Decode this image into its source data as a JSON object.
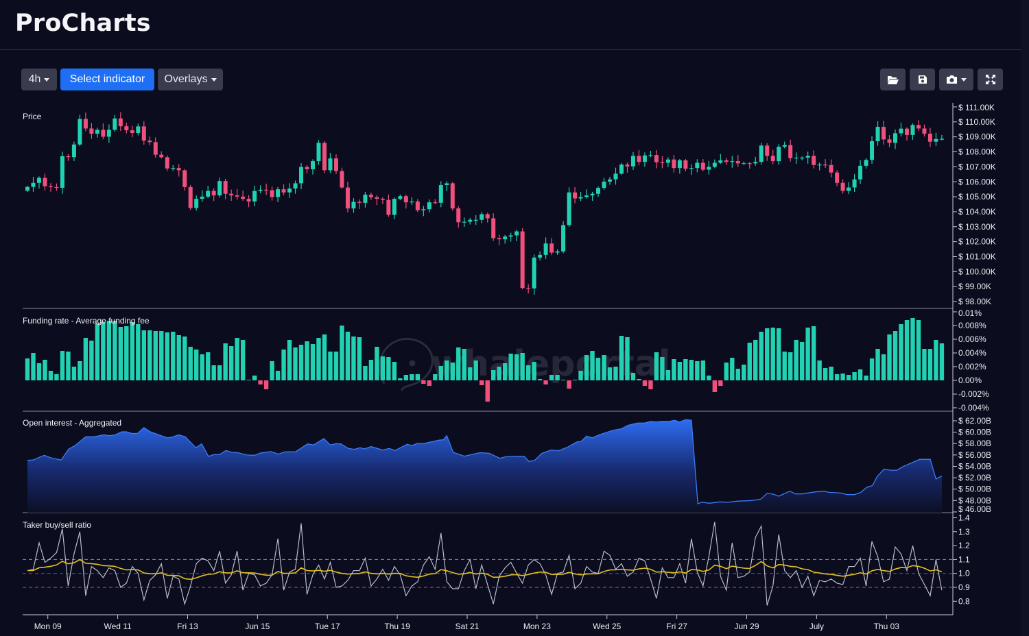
{
  "app": {
    "title": "ProCharts"
  },
  "toolbar": {
    "interval": "4h",
    "select_indicator": "Select indicator",
    "overlays": "Overlays",
    "icons": [
      "folder-open-icon",
      "save-icon",
      "camera-icon",
      "fullscreen-icon"
    ]
  },
  "watermark": "whaleportal",
  "colors": {
    "background": "#0b0c1e",
    "up": "#22d1b2",
    "down": "#f0507c",
    "accent": "#1e6ff5",
    "open_interest": "#2f6ff0",
    "taker_ratio": "#b9bcc8",
    "taker_average": "#e6c21e",
    "level_high": "#3fb6c8",
    "level_mid": "#3b5bd6",
    "level_low": "#b8508a"
  },
  "chart_data": [
    {
      "type": "candlestick",
      "title": "Price",
      "interval": "4h",
      "ylim": [
        98,
        111
      ],
      "y_ticks": [
        {
          "value": 111,
          "label": "$ 111.00K"
        },
        {
          "value": 110,
          "label": "$ 110.00K"
        },
        {
          "value": 109,
          "label": "$ 109.00K"
        },
        {
          "value": 108,
          "label": "$ 108.00K"
        },
        {
          "value": 107,
          "label": "$ 107.00K"
        },
        {
          "value": 106,
          "label": "$ 106.00K"
        },
        {
          "value": 105,
          "label": "$ 105.00K"
        },
        {
          "value": 104,
          "label": "$ 104.00K"
        },
        {
          "value": 103,
          "label": "$ 103.00K"
        },
        {
          "value": 102,
          "label": "$ 102.00K"
        },
        {
          "value": 101,
          "label": "$ 101.00K"
        },
        {
          "value": 100,
          "label": "$ 100.00K"
        },
        {
          "value": 99,
          "label": "$ 99.00K"
        },
        {
          "value": 98,
          "label": "$ 98.00K"
        }
      ],
      "first_open": 105.4,
      "close": [
        105.66,
        105.93,
        106.26,
        105.7,
        105.65,
        105.6,
        107.71,
        107.65,
        108.49,
        110.2,
        109.56,
        109.21,
        109.47,
        109.01,
        109.47,
        110.23,
        109.71,
        109.44,
        109.26,
        109.7,
        108.75,
        108.65,
        107.81,
        107.64,
        106.89,
        106.92,
        106.77,
        105.65,
        104.25,
        104.86,
        105.01,
        105.39,
        105.09,
        106.05,
        105.2,
        105.09,
        105.01,
        104.86,
        104.68,
        105.39,
        105.47,
        105.44,
        104.98,
        105.5,
        105.29,
        105.55,
        105.9,
        106.99,
        106.84,
        107.38,
        108.6,
        106.77,
        107.56,
        106.72,
        105.62,
        104.22,
        104.66,
        104.6,
        105.14,
        104.97,
        104.86,
        104.79,
        103.79,
        104.86,
        105.04,
        104.63,
        104.68,
        104.1,
        104.17,
        104.63,
        104.6,
        105.78,
        105.9,
        104.22,
        103.3,
        103.33,
        103.46,
        103.46,
        103.84,
        103.56,
        102.24,
        102.16,
        102.34,
        102.42,
        102.69,
        98.91,
        98.88,
        100.94,
        101.12,
        101.88,
        101.27,
        101.35,
        103.11,
        105.29,
        104.89,
        104.98,
        105.09,
        105.2,
        105.59,
        106.01,
        106.16,
        106.54,
        107.15,
        107.03,
        107.73,
        107.33,
        107.76,
        107.79,
        107.3,
        107.27,
        107.49,
        106.92,
        107.43,
        106.87,
        106.92,
        107.27,
        106.81,
        107.0,
        107.27,
        107.43,
        107.33,
        107.38,
        107.23,
        107.24,
        107.23,
        107.33,
        108.42,
        107.73,
        107.38,
        108.34,
        108.45,
        107.58,
        107.61,
        107.61,
        107.73,
        107.12,
        107.15,
        107.12,
        106.62,
        105.93,
        105.39,
        105.62,
        106.16,
        107.07,
        107.46,
        108.71,
        109.67,
        108.83,
        108.6,
        109.24,
        109.55,
        109.13,
        109.79,
        109.56,
        109.21,
        108.68,
        108.86,
        108.87
      ]
    },
    {
      "type": "bar",
      "title": "Funding rate - Average funding fee",
      "unit": "%",
      "ylim": [
        -0.004,
        0.01
      ],
      "y_ticks": [
        {
          "value": 0.01,
          "label": "0.01%"
        },
        {
          "value": 0.008,
          "label": "0.008%"
        },
        {
          "value": 0.006,
          "label": "0.006%"
        },
        {
          "value": 0.004,
          "label": "0.004%"
        },
        {
          "value": 0.002,
          "label": "0.002%"
        },
        {
          "value": 0,
          "label": "0.00%"
        },
        {
          "value": -0.002,
          "label": "-0.002%"
        },
        {
          "value": -0.004,
          "label": "-0.004%"
        }
      ],
      "values": [
        0.0032,
        0.004,
        0.0025,
        0.003,
        0.0014,
        0.0009,
        0.0043,
        0.0042,
        0.002,
        0.0028,
        0.0062,
        0.0058,
        0.0083,
        0.0085,
        0.0087,
        0.0087,
        0.0078,
        0.0079,
        0.0085,
        0.0082,
        0.0073,
        0.0073,
        0.0072,
        0.0072,
        0.007,
        0.0071,
        0.0066,
        0.0064,
        0.0049,
        0.0045,
        0.0038,
        0.0041,
        0.0022,
        0.0022,
        0.0054,
        0.005,
        0.0062,
        0.0059,
        0.0001,
        0.0007,
        -0.0006,
        -0.0013,
        0.0028,
        0.0014,
        0.0045,
        0.0059,
        0.0048,
        0.0052,
        0.0057,
        0.0053,
        0.0062,
        0.0067,
        0.0042,
        0.0042,
        0.008,
        0.0071,
        0.0064,
        0.0063,
        0.0021,
        0.003,
        0.0049,
        0.0035,
        0.0034,
        0.0027,
        0.0003,
        0.0008,
        0.0009,
        0.0009,
        -0.0005,
        -0.0008,
        0.0009,
        0.0021,
        0.0029,
        0.0026,
        0.0048,
        0.0046,
        0.0019,
        0.0029,
        -0.0007,
        -0.0031,
        0.0015,
        0.002,
        0.0025,
        0.0039,
        0.0038,
        0.004,
        0.0022,
        0.0027,
        0.0002,
        -0.0006,
        0.0008,
        0.0008,
        0.0001,
        -0.0012,
        0.0001,
        0.0014,
        0.0037,
        0.0043,
        0.0033,
        0.0037,
        0.0019,
        0.002,
        0.0065,
        0.0063,
        0.0011,
        0.0002,
        -0.0008,
        -0.0013,
        0.0041,
        0.0034,
        0.0015,
        0.0031,
        0.0027,
        0.0031,
        0.003,
        0.0028,
        0.0029,
        0.0007,
        -0.0017,
        -0.0008,
        0.0026,
        0.0033,
        0.0017,
        0.0023,
        0.0055,
        0.0059,
        0.0071,
        0.0076,
        0.0077,
        0.0076,
        0.0042,
        0.0041,
        0.0059,
        0.0056,
        0.0077,
        0.0079,
        0.0029,
        0.0018,
        0.002,
        0.0009,
        0.001,
        0.0008,
        0.0012,
        0.0016,
        0.0007,
        0.0032,
        0.0046,
        0.0038,
        0.0067,
        0.0072,
        0.0082,
        0.0088,
        0.0091,
        0.0088,
        0.0046,
        0.0046,
        0.0059,
        0.0054
      ]
    },
    {
      "type": "area",
      "title": "Open interest - Aggregated",
      "unit": "$B",
      "ylim": [
        46,
        62
      ],
      "y_ticks": [
        {
          "value": 62,
          "label": "$ 62.00B"
        },
        {
          "value": 60,
          "label": "$ 60.00B"
        },
        {
          "value": 58,
          "label": "$ 58.00B"
        },
        {
          "value": 56,
          "label": "$ 56.00B"
        },
        {
          "value": 54,
          "label": "$ 54.00B"
        },
        {
          "value": 52,
          "label": "$ 52.00B"
        },
        {
          "value": 50,
          "label": "$ 50.00B"
        },
        {
          "value": 48,
          "label": "$ 48.00B"
        },
        {
          "value": 46,
          "label": "$ 46.00B"
        }
      ],
      "points": [
        [
          0,
          55.06
        ],
        [
          0.9,
          55.1
        ],
        [
          2.9,
          55.95
        ],
        [
          4,
          55.5
        ],
        [
          5.8,
          55.1
        ],
        [
          7.1,
          57.07
        ],
        [
          8.2,
          57.66
        ],
        [
          10,
          59.2
        ],
        [
          11.5,
          59.2
        ],
        [
          13.1,
          59.55
        ],
        [
          14.1,
          59.4
        ],
        [
          15.1,
          59.55
        ],
        [
          16.2,
          60.07
        ],
        [
          17,
          60.07
        ],
        [
          18.1,
          59.75
        ],
        [
          18.9,
          59.8
        ],
        [
          20,
          60.8
        ],
        [
          21.1,
          60.07
        ],
        [
          24,
          59.0
        ],
        [
          24.7,
          59.1
        ],
        [
          26,
          59.55
        ],
        [
          27.1,
          59.2
        ],
        [
          28.9,
          57.27
        ],
        [
          29.9,
          57.95
        ],
        [
          31.1,
          55.75
        ],
        [
          32,
          56.07
        ],
        [
          33,
          56.07
        ],
        [
          34.1,
          56.79
        ],
        [
          35.1,
          56.47
        ],
        [
          36.1,
          56.4
        ],
        [
          37.7,
          55.99
        ],
        [
          39,
          55.95
        ],
        [
          40,
          56.35
        ],
        [
          41.8,
          56.6
        ],
        [
          43.1,
          56.15
        ],
        [
          44.2,
          56.55
        ],
        [
          46,
          56.55
        ],
        [
          48.1,
          57.95
        ],
        [
          49.1,
          57.75
        ],
        [
          50.9,
          58.88
        ],
        [
          52,
          57.75
        ],
        [
          53,
          57.99
        ],
        [
          53.8,
          57.95
        ],
        [
          55.1,
          57.15
        ],
        [
          56.1,
          56.99
        ],
        [
          57.1,
          57.27
        ],
        [
          57.9,
          57.07
        ],
        [
          59,
          57.47
        ],
        [
          61,
          56.87
        ],
        [
          62.1,
          57.15
        ],
        [
          63.1,
          56.79
        ],
        [
          65.2,
          57.87
        ],
        [
          66,
          57.67
        ],
        [
          67,
          58.03
        ],
        [
          68,
          57.99
        ],
        [
          70.6,
          58.6
        ],
        [
          71.4,
          58.67
        ],
        [
          72,
          59.39
        ],
        [
          73.1,
          56.47
        ],
        [
          75,
          55.79
        ],
        [
          77.7,
          56.4
        ],
        [
          79.3,
          56.3
        ],
        [
          81.1,
          55.43
        ],
        [
          82.2,
          55.7
        ],
        [
          84.5,
          55.79
        ],
        [
          85.3,
          55.75
        ],
        [
          86.1,
          54.87
        ],
        [
          87.1,
          55.06
        ],
        [
          88.3,
          56.27
        ],
        [
          89.9,
          56.87
        ],
        [
          91.2,
          56.75
        ],
        [
          92.8,
          57.4
        ],
        [
          94.3,
          58.27
        ],
        [
          95.1,
          58.4
        ],
        [
          96,
          59.3
        ],
        [
          97,
          59.0
        ],
        [
          98.2,
          59.55
        ],
        [
          100.6,
          60.35
        ],
        [
          102,
          60.6
        ],
        [
          103.1,
          61.2
        ],
        [
          104.7,
          61.6
        ],
        [
          106,
          61.6
        ],
        [
          107,
          61.9
        ],
        [
          108,
          61.8
        ],
        [
          108.8,
          61.9
        ],
        [
          110.3,
          61.9
        ],
        [
          111.1,
          62.1
        ],
        [
          112,
          61.8
        ],
        [
          113,
          62.2
        ],
        [
          114,
          62.1
        ],
        [
          115.1,
          47.44
        ],
        [
          115.8,
          47.7
        ],
        [
          117.1,
          47.52
        ],
        [
          118.9,
          47.76
        ],
        [
          120.2,
          47.68
        ],
        [
          121.8,
          47.88
        ],
        [
          124.4,
          48.0
        ],
        [
          125.9,
          48.24
        ],
        [
          127,
          49.24
        ],
        [
          128,
          49.12
        ],
        [
          129,
          48.76
        ],
        [
          130.9,
          49.64
        ],
        [
          131.9,
          49.16
        ],
        [
          132.9,
          49.16
        ],
        [
          135.3,
          49.52
        ],
        [
          136.8,
          49.64
        ],
        [
          137.6,
          49.44
        ],
        [
          139.7,
          49.32
        ],
        [
          140.7,
          49.04
        ],
        [
          142,
          49.04
        ],
        [
          143.1,
          49.44
        ],
        [
          144.1,
          50.32
        ],
        [
          145.1,
          50.64
        ],
        [
          145.9,
          52.24
        ],
        [
          147.1,
          53.52
        ],
        [
          148.2,
          53.32
        ],
        [
          149.3,
          53.32
        ],
        [
          150.1,
          53.84
        ],
        [
          151.4,
          54.44
        ],
        [
          153.2,
          55.24
        ],
        [
          155,
          55.24
        ],
        [
          156,
          51.77
        ],
        [
          157,
          52.33
        ]
      ]
    },
    {
      "type": "line",
      "title": "Taker buy/sell ratio",
      "ylim": [
        0.75,
        1.4
      ],
      "y_ticks": [
        {
          "value": 1.4,
          "label": "1.4"
        },
        {
          "value": 1.3,
          "label": "1.3"
        },
        {
          "value": 1.2,
          "label": "1.2"
        },
        {
          "value": 1.1,
          "label": "1.1"
        },
        {
          "value": 1.0,
          "label": "1.0"
        },
        {
          "value": 0.9,
          "label": "0.9"
        },
        {
          "value": 0.8,
          "label": "0.8"
        }
      ],
      "reference_lines": [
        1.1,
        1.0,
        0.9
      ],
      "values": [
        1.02,
        1.03,
        1.22,
        1.08,
        1.11,
        1.15,
        1.32,
        0.91,
        1.14,
        1.3,
        0.84,
        1.05,
        1.02,
        0.97,
        1.04,
        1.02,
        0.9,
        0.93,
        1.05,
        1.0,
        0.81,
        0.95,
        0.99,
        1.07,
        0.82,
        0.98,
        0.96,
        0.78,
        0.91,
        1.07,
        1.11,
        1.09,
        1.02,
        1.16,
        0.93,
        0.99,
        1.16,
        0.88,
        1.0,
        0.99,
        0.91,
        0.93,
        0.99,
        1.25,
        0.88,
        1.01,
        1.03,
        1.36,
        0.85,
        0.99,
        1.06,
        0.96,
        1.08,
        0.9,
        0.91,
        0.95,
        1.02,
        1.02,
        1.11,
        0.91,
        0.96,
        1.03,
        0.95,
        1.05,
        0.99,
        0.84,
        0.91,
        0.94,
        1.06,
        1.12,
        1.03,
        1.29,
        0.94,
        0.89,
        0.89,
        1.02,
        1.1,
        0.89,
        1.06,
        0.92,
        0.78,
        0.98,
        1.04,
        1.08,
        1.0,
        0.93,
        1.06,
        1.1,
        1.07,
        0.99,
        0.85,
        1.0,
        1.01,
        1.13,
        0.89,
        0.93,
        1.05,
        1.01,
        1.0,
        1.16,
        1.13,
        1.03,
        1.07,
        0.98,
        1.01,
        1.11,
        1.09,
        0.96,
        0.82,
        1.04,
        0.97,
        0.97,
        1.07,
        0.93,
        1.25,
        1.01,
        0.91,
        1.12,
        1.37,
        0.98,
        0.88,
        1.22,
        0.97,
        0.98,
        1.01,
        1.26,
        1.34,
        0.77,
        0.91,
        1.28,
        1.02,
        0.97,
        1.02,
        0.9,
        0.98,
        0.84,
        0.95,
        0.94,
        0.96,
        0.93,
        0.92,
        1.05,
        1.05,
        1.11,
        0.91,
        1.23,
        1.12,
        0.94,
        0.96,
        1.19,
        1.14,
        1.02,
        1.2,
        1.0,
        0.92,
        0.84,
        1.1,
        0.88
      ]
    }
  ],
  "x_axis": {
    "ticks": [
      {
        "label": "Mon 09",
        "bar": 3.5
      },
      {
        "label": "Wed 11",
        "bar": 15.5
      },
      {
        "label": "Fri 13",
        "bar": 27.5
      },
      {
        "label": "Jun 15",
        "bar": 39.5
      },
      {
        "label": "Tue 17",
        "bar": 51.5
      },
      {
        "label": "Thu 19",
        "bar": 63.5
      },
      {
        "label": "Sat 21",
        "bar": 75.5
      },
      {
        "label": "Mon 23",
        "bar": 87.5
      },
      {
        "label": "Wed 25",
        "bar": 99.5
      },
      {
        "label": "Fri 27",
        "bar": 111.5
      },
      {
        "label": "Jun 29",
        "bar": 123.5
      },
      {
        "label": "July",
        "bar": 135.5
      },
      {
        "label": "Thu 03",
        "bar": 147.5
      }
    ]
  }
}
